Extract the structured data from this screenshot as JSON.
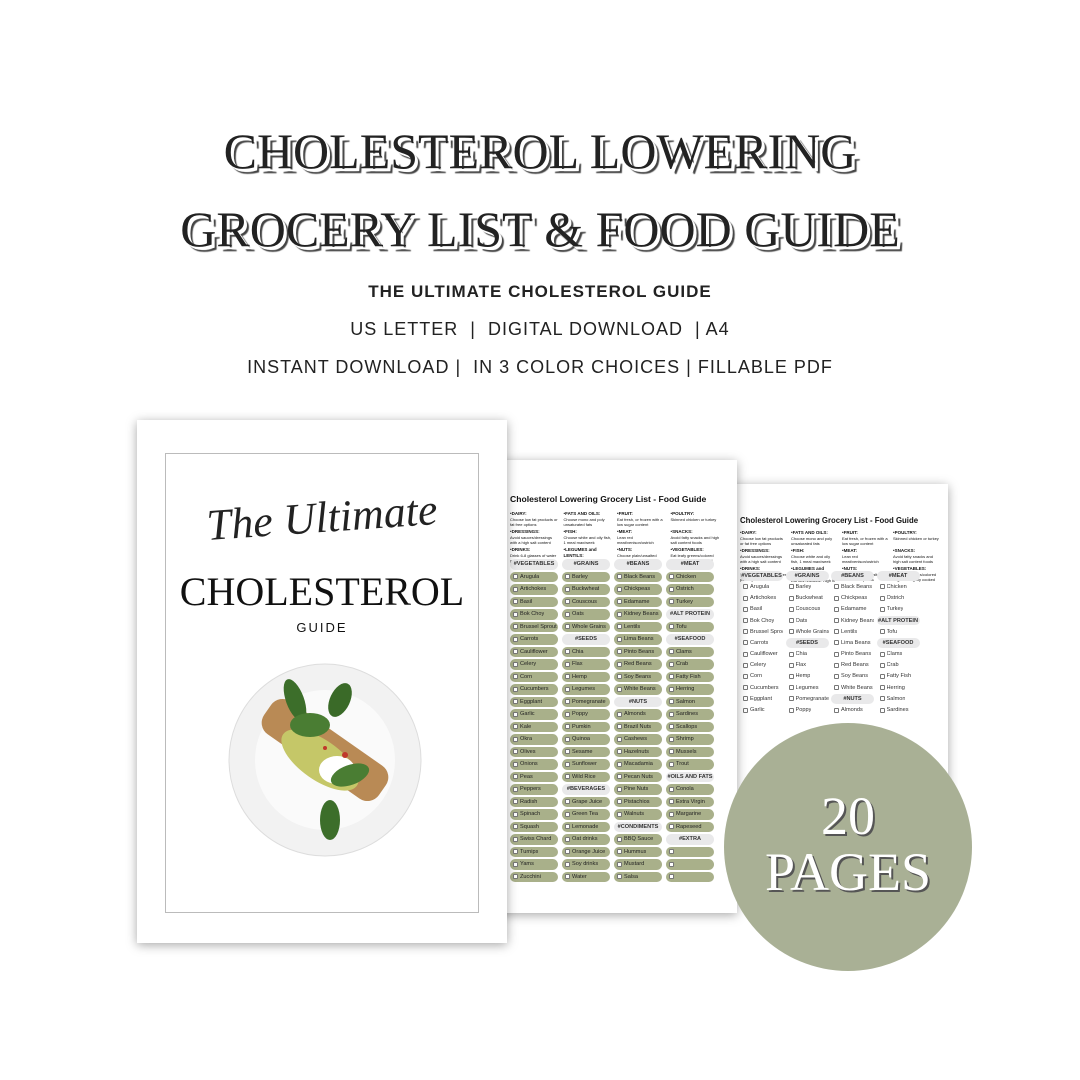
{
  "header": {
    "title_line1": "CHOLESTEROL LOWERING",
    "title_line2": "GROCERY LIST & FOOD GUIDE",
    "subtitle": "THE ULTIMATE CHOLESTEROL GUIDE",
    "formats": "US LETTER  |  DIGITAL DOWNLOAD  | A4",
    "features": "INSTANT DOWNLOAD |  IN 3 COLOR CHOICES | FILLABLE PDF"
  },
  "cover": {
    "script": "The Ultimate",
    "title": "CHOLESTEROL",
    "subtitle": "GUIDE"
  },
  "sheet": {
    "title": "Cholesterol Lowering Grocery List - Food Guide",
    "info": [
      {
        "h": "DAIRY:",
        "t": "Choose low fat products or fat free options"
      },
      {
        "h": "FATS AND OILS:",
        "t": "Choose mono and poly unsaturated fats"
      },
      {
        "h": "FRUIT:",
        "t": "Eat fresh, or frozen with a low sugar content"
      },
      {
        "h": "POULTRY:",
        "t": "Skinned chicken or turkey"
      },
      {
        "h": "DRESSINGS:",
        "t": "Avoid sauces/dressings with a high salt content"
      },
      {
        "h": "FISH:",
        "t": "Choose white and oily fish, 1 meal max/week"
      },
      {
        "h": "MEAT:",
        "t": "Lean red meat/venison/ostrich"
      },
      {
        "h": "SNACKS:",
        "t": "Avoid fatty snacks and high salt content foods"
      },
      {
        "h": "DRINKS:",
        "t": "Drink 6-8 glasses of water per day"
      },
      {
        "h": "LEGUMES and LENTILS:",
        "t": "Eat lots regularly. High in fibre"
      },
      {
        "h": "NUTS:",
        "t": "Choose plain/unsalted unroasted options"
      },
      {
        "h": "VEGETABLES:",
        "t": "Eat leafy greens/colored veg. Raw/lightly cooked"
      }
    ],
    "columns": [
      [
        "#VEGETABLES",
        "Arugula",
        "Artichokes",
        "Basil",
        "Bok  Choy",
        "Brussel Sprout",
        "Carrots",
        "Cauliflower",
        "Celery",
        "Corn",
        "Cucumbers",
        "Eggplant",
        "Garlic",
        "Kale",
        "Okra",
        "Olives",
        "Onions",
        "Peas",
        "Peppers",
        "Radish",
        "Spinach",
        "Squash",
        "Swiss Chard",
        "Turnips",
        "Yams",
        "Zucchini"
      ],
      [
        "#GRAINS",
        "Barley",
        "Buckwheat",
        "Couscous",
        "Oats",
        "Whole Grains",
        "#SEEDS",
        "Chia",
        "Flax",
        "Hemp",
        "Legumes",
        "Pomegranate",
        "Poppy",
        "Pumkin",
        "Quinoa",
        "Sesame",
        "Sunflower",
        "Wild Rice",
        "#BEVERAGES",
        "Grape Juice",
        "Green Tea",
        "Lemonade",
        "Oat drinks",
        "Orange Juice",
        "Soy drinks",
        "Water"
      ],
      [
        "#BEANS",
        "Black Beans",
        "Chickpeas",
        "Edamame",
        "Kidney Beans",
        "Lentils",
        "Lima Beans",
        "Pinto Beans",
        "Red Beans",
        "Soy Beans",
        "White Beans",
        "#NUTS",
        "Almonds",
        "Brazil Nuts",
        "Cashews",
        "Hazelnuts",
        "Macadamia",
        "Pecan Nuts",
        "Pine Nuts",
        "Pistachios",
        "Walnuts",
        "#CONDIMENTS",
        "BBQ Sauce",
        "Hummus",
        "Mustard",
        "Salsa"
      ],
      [
        "#MEAT",
        "Chicken",
        "Ostrich",
        "Turkey",
        "#ALT PROTEIN",
        "Tofu",
        "#SEAFOOD",
        "Clams",
        "Crab",
        "Fatty Fish",
        "Herring",
        "Salmon",
        "Sardines",
        "Scallops",
        "Shrimp",
        "Mussels",
        "Trout",
        "#OILS AND FATS",
        "Conola",
        "Extra Virgin",
        "Margarine",
        "Rapeseed",
        "#EXTRA",
        "",
        "",
        ""
      ]
    ]
  },
  "badge": {
    "number": "20",
    "label": "PAGES"
  },
  "colors": {
    "sage": "#a9b095",
    "item_green": "#a9b08a",
    "header_gray": "#e9e9ea"
  }
}
